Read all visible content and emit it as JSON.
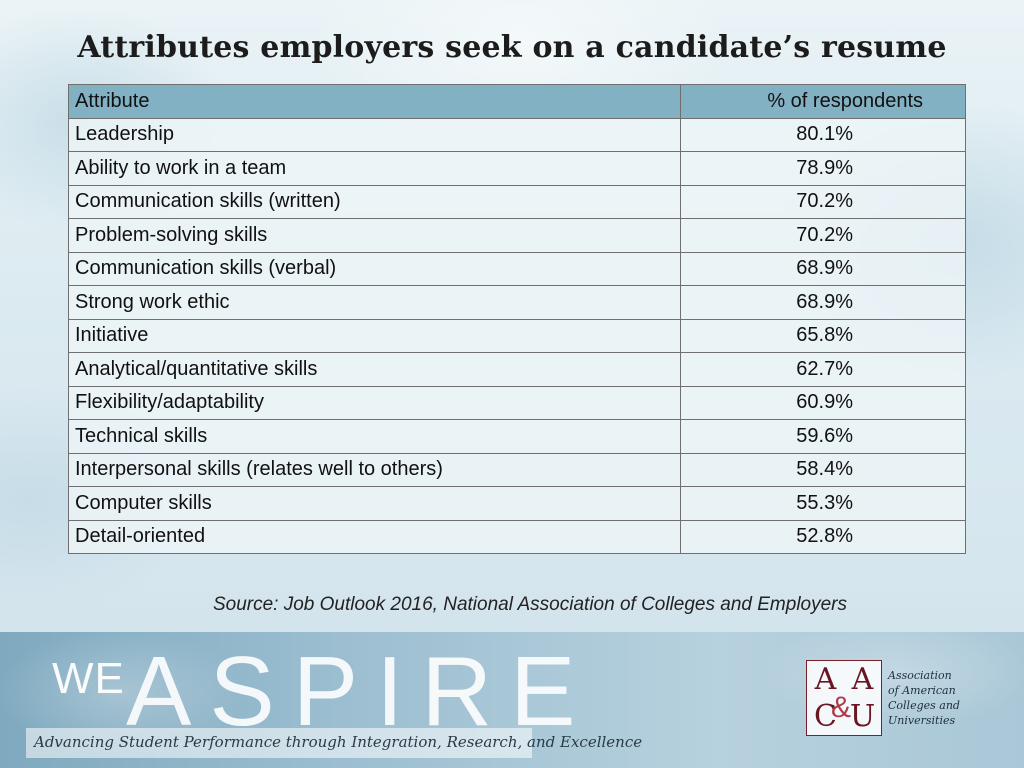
{
  "title": "Attributes employers seek on a candidate’s resume",
  "table": {
    "headers": [
      "Attribute",
      "% of respondents"
    ],
    "rows": [
      {
        "attribute": "Leadership",
        "pct": "80.1%"
      },
      {
        "attribute": "Ability to work in a team",
        "pct": "78.9%"
      },
      {
        "attribute": "Communication skills (written)",
        "pct": "70.2%"
      },
      {
        "attribute": "Problem-solving skills",
        "pct": "70.2%"
      },
      {
        "attribute": "Communication skills (verbal)",
        "pct": "68.9%"
      },
      {
        "attribute": "Strong work ethic",
        "pct": "68.9%"
      },
      {
        "attribute": "Initiative",
        "pct": "65.8%"
      },
      {
        "attribute": "Analytical/quantitative skills",
        "pct": "62.7%"
      },
      {
        "attribute": "Flexibility/adaptability",
        "pct": "60.9%"
      },
      {
        "attribute": "Technical skills",
        "pct": "59.6%"
      },
      {
        "attribute": "Interpersonal skills (relates well to others)",
        "pct": "58.4%"
      },
      {
        "attribute": "Computer skills",
        "pct": "55.3%"
      },
      {
        "attribute": "Detail-oriented",
        "pct": "52.8%"
      }
    ]
  },
  "source": "Source: Job Outlook 2016, National Association of Colleges and Employers",
  "footer": {
    "brand_we": "WE",
    "brand_aspire": "ASPIRE",
    "tagline": "Advancing Student Performance through Integration, Research, and Excellence",
    "logo_letters": [
      "A",
      "A",
      "C",
      "U"
    ],
    "logo_amp": "&",
    "org_name_lines": [
      "Association",
      "of American",
      "Colleges and",
      "Universities"
    ]
  },
  "colors": {
    "header_row": "#82b1c3",
    "logo_red": "#7a1f2b"
  }
}
